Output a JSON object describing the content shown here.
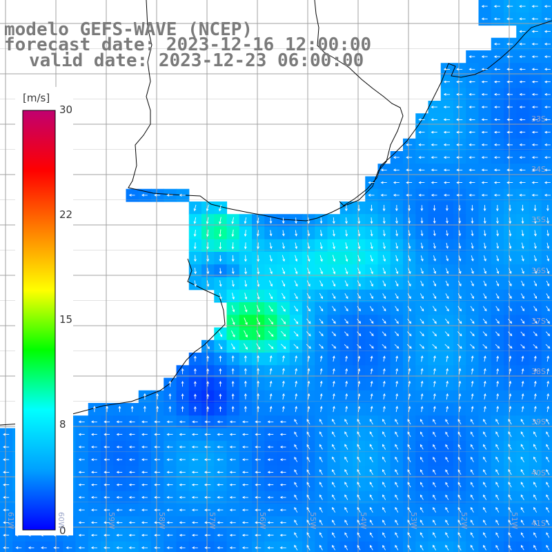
{
  "title": {
    "model": "modelo GEFS-WAVE (NCEP)",
    "forecast": "forecast date: 2023-12-16 12:00:00",
    "valid": "valid date: 2023-12-23 06:00:00"
  },
  "colorbar": {
    "unit": "[m/s]",
    "ticks": [
      "30",
      "22",
      "15",
      "8",
      "0"
    ],
    "stops": [
      "#0000ff",
      "#00a0ff",
      "#00ffff",
      "#00ff00",
      "#ffff00",
      "#ff8000",
      "#ff0000",
      "#c00070"
    ]
  },
  "map": {
    "lat_labels": [
      "33S",
      "34S",
      "35S",
      "36S",
      "37S",
      "38S",
      "39S",
      "40S",
      "41S"
    ],
    "lon_labels": [
      "61W",
      "60W",
      "59W",
      "58W",
      "57W",
      "56W",
      "55W",
      "54W",
      "53W",
      "52W",
      "51W"
    ],
    "colors": {
      "land": "#ffffff",
      "grid": "#a0a0a0",
      "coast": "#000000",
      "arrow": "#ffffff"
    }
  }
}
